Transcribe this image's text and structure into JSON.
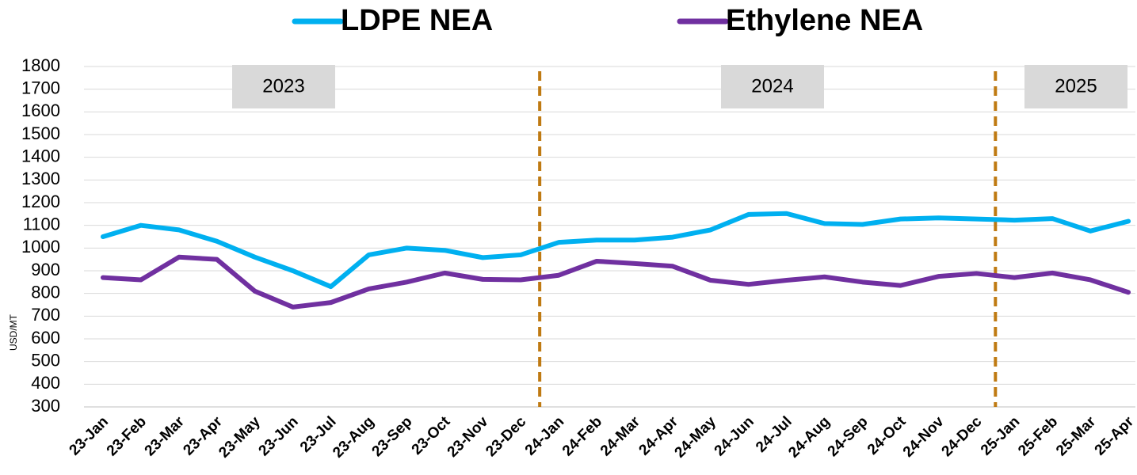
{
  "chart_data": {
    "type": "line",
    "y_label": "USD/MT",
    "annotations": [
      "2023",
      "2024",
      "2025"
    ],
    "categories": [
      "23-Jan",
      "23-Feb",
      "23-Mar",
      "23-Apr",
      "23-May",
      "23-Jun",
      "23-Jul",
      "23-Aug",
      "23-Sep",
      "23-Oct",
      "23-Nov",
      "23-Dec",
      "24-Jan",
      "24-Feb",
      "24-Mar",
      "24-Apr",
      "24-May",
      "24-Jun",
      "24-Jul",
      "24-Aug",
      "24-Sep",
      "24-Oct",
      "24-Nov",
      "24-Dec",
      "25-Jan",
      "25-Feb",
      "25-Mar",
      "25-Apr"
    ],
    "series": [
      {
        "name": "LDPE NEA",
        "color": "#00b0f0",
        "values": [
          1050,
          1100,
          1080,
          1030,
          960,
          900,
          830,
          970,
          1000,
          990,
          958,
          970,
          1025,
          1035,
          1035,
          1048,
          1080,
          1148,
          1152,
          1108,
          1104,
          1128,
          1133,
          1128,
          1123,
          1130,
          1075,
          1118
        ]
      },
      {
        "name": "Ethylene NEA",
        "color": "#7030a0",
        "values": [
          870,
          860,
          960,
          950,
          810,
          740,
          760,
          820,
          850,
          890,
          862,
          860,
          880,
          942,
          932,
          920,
          858,
          840,
          858,
          873,
          850,
          835,
          875,
          888,
          870,
          890,
          860,
          805
        ]
      }
    ],
    "ylim": [
      300,
      1800
    ],
    "yticks": [
      300,
      400,
      500,
      600,
      700,
      800,
      900,
      1000,
      1100,
      1200,
      1300,
      1400,
      1500,
      1600,
      1700,
      1800
    ],
    "grid": true
  }
}
